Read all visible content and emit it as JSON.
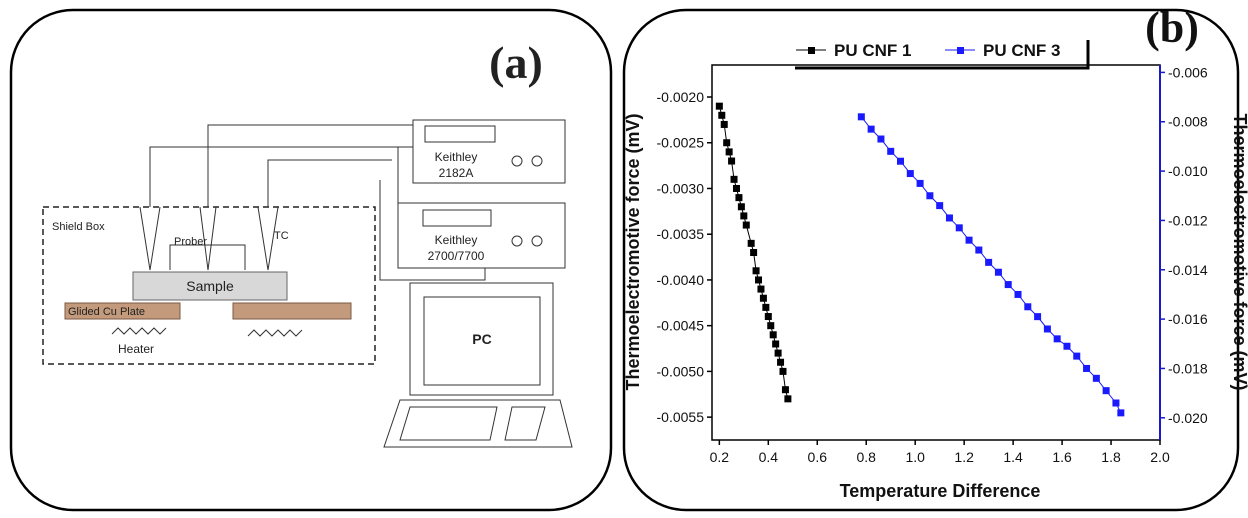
{
  "panel_a": {
    "label": "(a)",
    "instrument_1": [
      "Keithley",
      "2182A"
    ],
    "instrument_2": [
      "Keithley",
      "2700/7700"
    ],
    "shield_box": "Shield Box",
    "prober": "Prober",
    "tc": "TC",
    "sample": "Sample",
    "plate": "Glided Cu Plate",
    "heater": "Heater",
    "pc": "PC"
  },
  "chart_data": {
    "type": "scatter",
    "panel_label": "(b)",
    "x_label": "Temperature Difference",
    "y_label": "Thermoelectromotive force (mV)",
    "y2_label": "Thermoelectromotive force (mV)",
    "xlim": [
      0.17,
      2.0
    ],
    "ylim": [
      -0.00575,
      -0.00165
    ],
    "y2lim": [
      -0.0209,
      -0.0057
    ],
    "xticks": [
      0.2,
      0.4,
      0.6,
      0.8,
      {
        "value": 1,
        "label": "1.0"
      },
      1.2,
      1.4,
      1.6,
      1.8,
      {
        "value": 2,
        "label": "2.0"
      }
    ],
    "yticks": [
      {
        "value": -0.002,
        "label": "-0.0020"
      },
      {
        "value": -0.0025,
        "label": "-0.0025"
      },
      {
        "value": -0.003,
        "label": "-0.0030"
      },
      {
        "value": -0.0035,
        "label": "-0.0035"
      },
      {
        "value": -0.004,
        "label": "-0.0040"
      },
      {
        "value": -0.0045,
        "label": "-0.0045"
      },
      {
        "value": -0.005,
        "label": "-0.0050"
      },
      {
        "value": -0.0055,
        "label": "-0.0055"
      }
    ],
    "y2ticks": [
      {
        "value": -0.006,
        "label": "-0.006"
      },
      {
        "value": -0.008,
        "label": "-0.008"
      },
      {
        "value": -0.01,
        "label": "-0.010"
      },
      {
        "value": -0.012,
        "label": "-0.012"
      },
      {
        "value": -0.014,
        "label": "-0.014"
      },
      {
        "value": -0.016,
        "label": "-0.016"
      },
      {
        "value": -0.018,
        "label": "-0.018"
      },
      {
        "value": -0.02,
        "label": "-0.020"
      }
    ],
    "y2_color": "#1a1acc",
    "series": [
      {
        "name": "PU CNF 1",
        "color": "#000000",
        "x": [
          0.2,
          0.21,
          0.22,
          0.23,
          0.24,
          0.25,
          0.26,
          0.27,
          0.28,
          0.29,
          0.3,
          0.31,
          0.33,
          0.34,
          0.35,
          0.36,
          0.37,
          0.38,
          0.39,
          0.4,
          0.41,
          0.42,
          0.43,
          0.44,
          0.45,
          0.46,
          0.47,
          0.48
        ],
        "values": [
          -0.0021,
          -0.0022,
          -0.0023,
          -0.0025,
          -0.0026,
          -0.0027,
          -0.0029,
          -0.003,
          -0.0031,
          -0.0032,
          -0.0033,
          -0.0034,
          -0.0036,
          -0.0037,
          -0.0039,
          -0.004,
          -0.0041,
          -0.0042,
          -0.0043,
          -0.0044,
          -0.0045,
          -0.0046,
          -0.0047,
          -0.0048,
          -0.0049,
          -0.005,
          -0.0052,
          -0.0053
        ]
      },
      {
        "name": "PU CNF 3",
        "color": "#1a1aff",
        "axis": "y2",
        "x": [
          0.78,
          0.82,
          0.86,
          0.9,
          0.94,
          0.98,
          1.02,
          1.06,
          1.1,
          1.14,
          1.18,
          1.22,
          1.26,
          1.3,
          1.34,
          1.38,
          1.42,
          1.46,
          1.5,
          1.54,
          1.58,
          1.62,
          1.66,
          1.7,
          1.74,
          1.78,
          1.82,
          1.84
        ],
        "values": [
          -0.0078,
          -0.0083,
          -0.0087,
          -0.0092,
          -0.0096,
          -0.0101,
          -0.0105,
          -0.011,
          -0.0114,
          -0.0119,
          -0.0123,
          -0.0128,
          -0.0132,
          -0.0137,
          -0.0141,
          -0.0146,
          -0.015,
          -0.0155,
          -0.0159,
          -0.0164,
          -0.0168,
          -0.0171,
          -0.0175,
          -0.018,
          -0.0184,
          -0.0189,
          -0.0194,
          -0.0198
        ]
      }
    ]
  }
}
